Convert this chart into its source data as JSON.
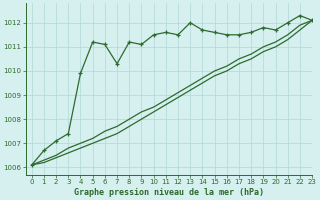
{
  "title": "Graphe pression niveau de la mer (hPa)",
  "background_color": "#d6f0f0",
  "grid_color": "#b0d8d8",
  "line_color": "#2d6a2d",
  "xlim": [
    -0.5,
    23
  ],
  "ylim": [
    1005.7,
    1012.8
  ],
  "xticks": [
    0,
    1,
    2,
    3,
    4,
    5,
    6,
    7,
    8,
    9,
    10,
    11,
    12,
    13,
    14,
    15,
    16,
    17,
    18,
    19,
    20,
    21,
    22,
    23
  ],
  "yticks": [
    1006,
    1007,
    1008,
    1009,
    1010,
    1011,
    1012
  ],
  "hours": [
    0,
    1,
    2,
    3,
    4,
    5,
    6,
    7,
    8,
    9,
    10,
    11,
    12,
    13,
    14,
    15,
    16,
    17,
    18,
    19,
    20,
    21,
    22,
    23
  ],
  "line_marked": [
    1006.1,
    1006.7,
    1007.1,
    1007.4,
    1009.9,
    1011.2,
    1011.1,
    1010.3,
    1011.2,
    1011.1,
    1011.5,
    1011.6,
    1011.5,
    1012.0,
    1011.7,
    1011.6,
    1011.5,
    1011.5,
    1011.6,
    1011.8,
    1011.7,
    1012.0,
    1012.3,
    1012.1
  ],
  "line_straight1": [
    1006.1,
    1006.2,
    1006.4,
    1006.6,
    1006.8,
    1007.0,
    1007.2,
    1007.4,
    1007.7,
    1008.0,
    1008.3,
    1008.6,
    1008.9,
    1009.2,
    1009.5,
    1009.8,
    1010.0,
    1010.3,
    1010.5,
    1010.8,
    1011.0,
    1011.3,
    1011.7,
    1012.1
  ],
  "line_straight2": [
    1006.1,
    1006.3,
    1006.5,
    1006.8,
    1007.0,
    1007.2,
    1007.5,
    1007.7,
    1008.0,
    1008.3,
    1008.5,
    1008.8,
    1009.1,
    1009.4,
    1009.7,
    1010.0,
    1010.2,
    1010.5,
    1010.7,
    1011.0,
    1011.2,
    1011.5,
    1011.9,
    1012.1
  ]
}
